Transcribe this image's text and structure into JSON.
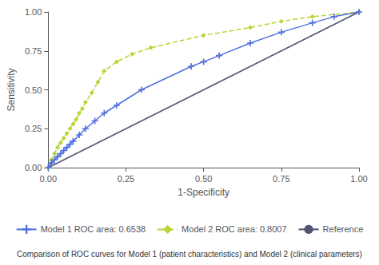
{
  "chart_data": {
    "type": "line",
    "xlabel": "1-Specificity",
    "ylabel": "Sensitivity",
    "caption": "Comparison of ROC curves for Model 1 (patient characteristics) and Model 2 (clinical parameters)",
    "xlim": [
      0.0,
      1.0
    ],
    "ylim": [
      0.0,
      1.0
    ],
    "xticks": [
      {
        "value": 0,
        "label": "0.00"
      },
      0.25,
      {
        "value": 0.5,
        "label": "0.50"
      },
      0.75,
      {
        "value": 1,
        "label": "1.00"
      }
    ],
    "yticks": [
      {
        "value": 0,
        "label": "0.00"
      },
      0.25,
      {
        "value": 0.5,
        "label": "0.50"
      },
      0.75,
      {
        "value": 1,
        "label": "1.00"
      }
    ],
    "grid": false,
    "legend": "bottom",
    "series": [
      {
        "name": "Model 1 ROC area: 0.6538",
        "marker": "plus",
        "line_style": "solid",
        "x": [
          0.0,
          0.01,
          0.02,
          0.03,
          0.04,
          0.05,
          0.06,
          0.07,
          0.08,
          0.1,
          0.12,
          0.15,
          0.18,
          0.22,
          0.3,
          0.46,
          0.5,
          0.55,
          0.65,
          0.75,
          0.85,
          0.92,
          1.0
        ],
        "values": [
          0.0,
          0.03,
          0.05,
          0.07,
          0.09,
          0.11,
          0.13,
          0.15,
          0.17,
          0.21,
          0.25,
          0.3,
          0.35,
          0.4,
          0.5,
          0.65,
          0.68,
          0.72,
          0.8,
          0.87,
          0.93,
          0.97,
          1.0
        ]
      },
      {
        "name": "Model 2 ROC area: 0.8007",
        "marker": "diamond",
        "line_style": "dashed",
        "x": [
          0.0,
          0.01,
          0.02,
          0.03,
          0.04,
          0.05,
          0.06,
          0.07,
          0.08,
          0.09,
          0.1,
          0.11,
          0.12,
          0.14,
          0.16,
          0.18,
          0.22,
          0.27,
          0.33,
          0.5,
          0.65,
          0.75,
          0.85,
          1.0
        ],
        "values": [
          0.0,
          0.05,
          0.09,
          0.13,
          0.16,
          0.19,
          0.22,
          0.25,
          0.28,
          0.31,
          0.35,
          0.38,
          0.42,
          0.48,
          0.55,
          0.62,
          0.68,
          0.73,
          0.77,
          0.85,
          0.9,
          0.94,
          0.97,
          1.0
        ]
      },
      {
        "name": "Reference",
        "line_style": "solid",
        "x": [
          0,
          1
        ],
        "values": [
          0,
          1
        ]
      }
    ]
  }
}
